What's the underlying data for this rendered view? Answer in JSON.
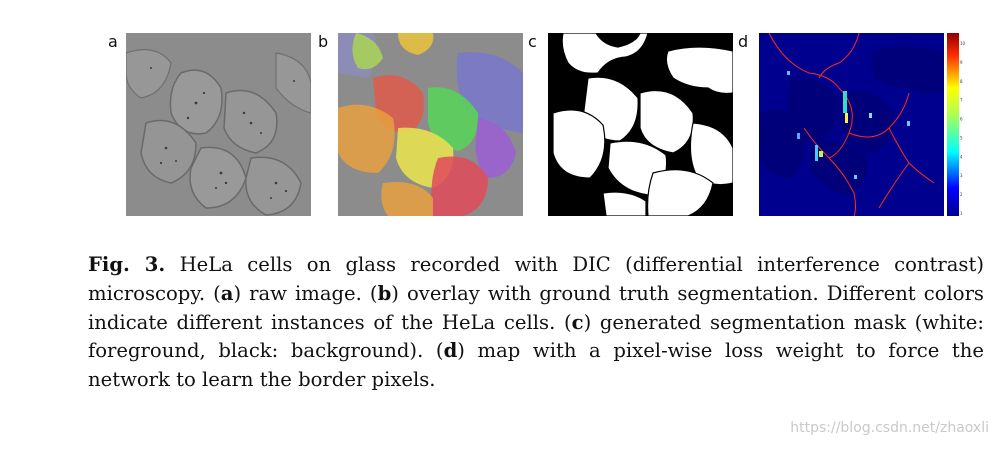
{
  "figure": {
    "panels": [
      {
        "label": "a",
        "kind": "raw-image"
      },
      {
        "label": "b",
        "kind": "overlay"
      },
      {
        "label": "c",
        "kind": "mask"
      },
      {
        "label": "d",
        "kind": "weight-map"
      }
    ],
    "colorbar_ticks": [
      "10",
      "9",
      "8",
      "7",
      "6",
      "5",
      "4",
      "3",
      "2",
      "1"
    ],
    "colors": {
      "gray_bg": "#8c8c8c",
      "weight_bg": "#00008f",
      "border_red": "#ff2a1a",
      "overlay": [
        "#a8d05a",
        "#7a78c8",
        "#e6a040",
        "#e05a4a",
        "#5ad05a",
        "#e6e050",
        "#9a60d0",
        "#e04a5a",
        "#e6c040",
        "#8c8cb8"
      ]
    }
  },
  "caption": {
    "fig_label": "Fig. 3.",
    "t1": " HeLa cells on glass recorded with DIC (differential interference contrast) microscopy. (",
    "a": "a",
    "t2": ") raw image. (",
    "b": "b",
    "t3": ") overlay with ground truth segmentation. Different colors indicate different instances of the HeLa cells. (",
    "c": "c",
    "t4": ") generated segmentation mask (white: foreground, black: background). (",
    "d": "d",
    "t5": ") map with a pixel-wise loss weight to force the network to learn the border pixels."
  },
  "watermark": "https://blog.csdn.net/zhaoxli"
}
